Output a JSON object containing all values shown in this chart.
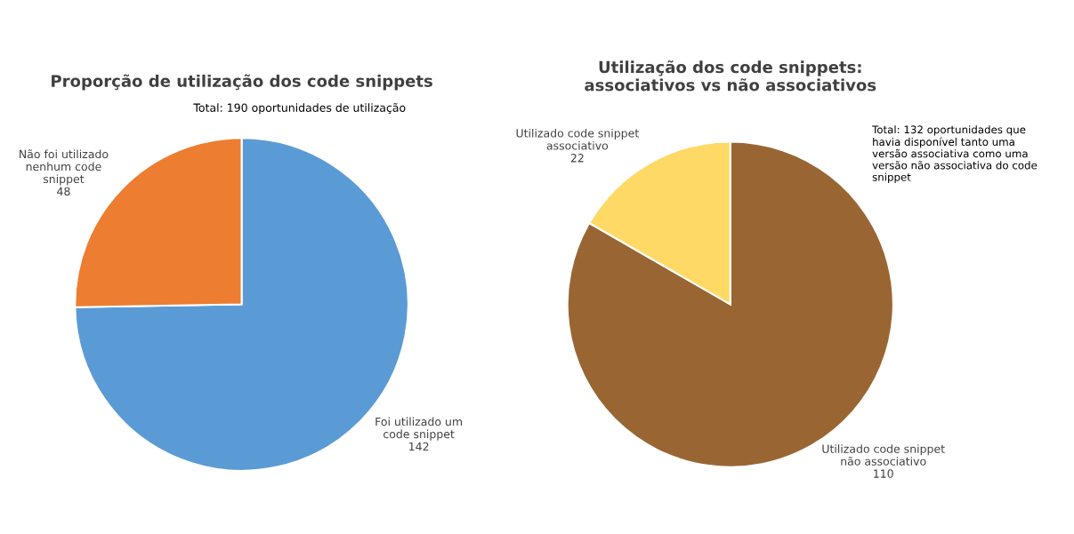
{
  "chart_data": [
    {
      "type": "pie",
      "title": "Proporção de utilização dos code snippets",
      "categories": [
        "Foi utilizado um\ncode snippet",
        "Não foi utilizado\nnenhum code\nsnippet"
      ],
      "values": [
        142,
        48
      ],
      "colors": [
        "#5b9bd5",
        "#ed7d31"
      ],
      "data_labels": true,
      "annotations": [
        "Total: 190 oportunidades de utilização"
      ]
    },
    {
      "type": "pie",
      "title": "Utilização dos code snippets:\nassociativos vs não associativos",
      "categories": [
        "Utilizado code snippet\nnão associativo",
        "Utilizado code snippet\nassociativo"
      ],
      "values": [
        110,
        22
      ],
      "colors": [
        "#996633",
        "#ffd966"
      ],
      "data_labels": true,
      "annotations": [
        "Total: 132 oportunidades que\nhavia disponível tanto uma\nversão associativa como uma\nversão não associativa do code\nsnippet"
      ]
    }
  ]
}
